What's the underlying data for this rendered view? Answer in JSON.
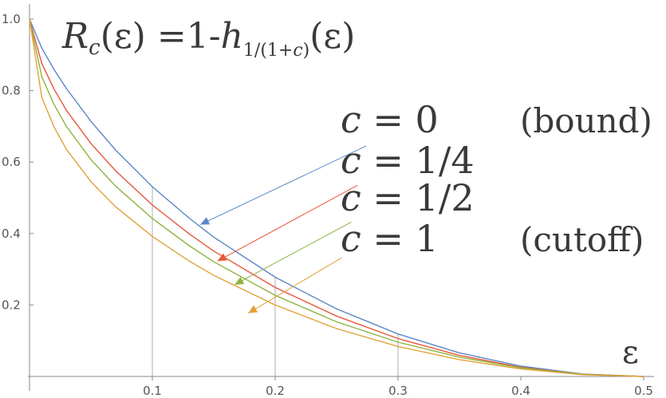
{
  "chart_data": {
    "type": "line",
    "title": {
      "r": "R",
      "r_sub": "c",
      "arg": "(ε)",
      "eq": " =1-",
      "h": "h",
      "h_sub": "1/(1+",
      "h_sub_c": "c",
      "h_sub_end": ")",
      "h_arg": "(ε)"
    },
    "xlabel": "ε",
    "ylabel": "",
    "xlim": [
      0,
      0.5
    ],
    "ylim": [
      0,
      1.0
    ],
    "xticks": [
      "0.1",
      "0.2",
      "0.3",
      "0.4",
      "0.5"
    ],
    "yticks": [
      "0.2",
      "0.4",
      "0.6",
      "0.8",
      "1.0"
    ],
    "grid_vertical_at": [
      0.1,
      0.2,
      0.3
    ],
    "series": [
      {
        "name": "c = 0",
        "c_label": "c",
        "eq_label": " = 0",
        "note": "(bound)",
        "color": "#5b87c5",
        "c": 0,
        "x": [
          0.01,
          0.02,
          0.03,
          0.05,
          0.07,
          0.1,
          0.13,
          0.15,
          0.2,
          0.25,
          0.3,
          0.35,
          0.4,
          0.45,
          0.5
        ],
        "y": [
          0.919,
          0.859,
          0.806,
          0.714,
          0.634,
          0.531,
          0.443,
          0.39,
          0.278,
          0.189,
          0.119,
          0.066,
          0.029,
          0.007,
          0.0
        ]
      },
      {
        "name": "c = 1/4",
        "c_label": "c",
        "eq_label": " = 1/4",
        "note": "",
        "color": "#e8573b",
        "c": 0.25,
        "x": [
          0.01,
          0.02,
          0.03,
          0.05,
          0.07,
          0.1,
          0.13,
          0.15,
          0.2,
          0.25,
          0.3,
          0.35,
          0.4,
          0.45,
          0.5
        ],
        "y": [
          0.876,
          0.804,
          0.745,
          0.652,
          0.576,
          0.48,
          0.399,
          0.351,
          0.249,
          0.169,
          0.106,
          0.059,
          0.026,
          0.006,
          0.0
        ]
      },
      {
        "name": "c = 1/2",
        "c_label": "c",
        "eq_label": " = 1/2",
        "note": "",
        "color": "#8db33f",
        "c": 0.5,
        "x": [
          0.01,
          0.02,
          0.03,
          0.05,
          0.07,
          0.1,
          0.13,
          0.15,
          0.2,
          0.25,
          0.3,
          0.35,
          0.4,
          0.45,
          0.5
        ],
        "y": [
          0.839,
          0.761,
          0.7,
          0.607,
          0.533,
          0.442,
          0.366,
          0.321,
          0.227,
          0.153,
          0.096,
          0.054,
          0.024,
          0.006,
          0.0
        ]
      },
      {
        "name": "c = 1",
        "c_label": "c",
        "eq_label": " = 1",
        "note": "(cutoff)",
        "color": "#e0a23a",
        "c": 1,
        "x": [
          0.01,
          0.02,
          0.03,
          0.05,
          0.07,
          0.1,
          0.13,
          0.15,
          0.2,
          0.25,
          0.3,
          0.35,
          0.4,
          0.45,
          0.5
        ],
        "y": [
          0.781,
          0.698,
          0.636,
          0.545,
          0.475,
          0.392,
          0.323,
          0.283,
          0.2,
          0.134,
          0.084,
          0.047,
          0.021,
          0.005,
          0.0
        ]
      }
    ],
    "annotations": [
      {
        "series": 0,
        "from_x": 0.274,
        "from_y": 0.645,
        "to_x": 0.139,
        "to_y": 0.425
      },
      {
        "series": 1,
        "from_x": 0.267,
        "from_y": 0.535,
        "to_x": 0.153,
        "to_y": 0.323
      },
      {
        "series": 2,
        "from_x": 0.262,
        "from_y": 0.432,
        "to_x": 0.167,
        "to_y": 0.257
      },
      {
        "series": 3,
        "from_x": 0.254,
        "from_y": 0.332,
        "to_x": 0.178,
        "to_y": 0.177
      }
    ]
  }
}
